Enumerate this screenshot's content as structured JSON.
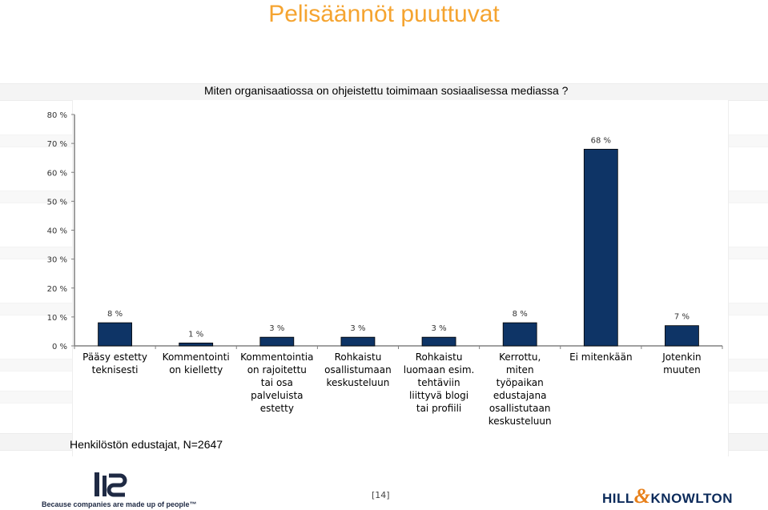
{
  "page": {
    "title": "Pelisäännöt puuttuvat",
    "question": "Miten organisaatiossa on ohjeistettu toimimaan sosiaalisessa mediassa ?",
    "footnote": "Henkilöstön edustajat, N=2647",
    "page_number": "[14]",
    "logo_left_tagline": "Because companies are made up of people™",
    "logo_right_text_a": "HILL",
    "logo_right_text_b": "&",
    "logo_right_text_c": "KNOWLTON",
    "colors": {
      "title": "#f5a430",
      "bar": "#0e3466",
      "axis": "#808080"
    }
  },
  "chart_data": {
    "type": "bar",
    "categories": [
      [
        "Pääsy estetty",
        "teknisesti"
      ],
      [
        "Kommentointi",
        "on kielletty"
      ],
      [
        "Kommentointia",
        "on rajoitettu",
        "tai osa",
        "palveluista",
        "estetty"
      ],
      [
        "Rohkaistu",
        "osallistumaan",
        "keskusteluun"
      ],
      [
        "Rohkaistu",
        "luomaan esim.",
        "tehtäviin",
        "liittyvä blogi",
        "tai profiili"
      ],
      [
        "Kerrottu,",
        "miten",
        "työpaikan",
        "edustajana",
        "osallistutaan",
        "keskusteluun"
      ],
      [
        "Ei mitenkään"
      ],
      [
        "Jotenkin",
        "muuten"
      ]
    ],
    "values": [
      8,
      1,
      3,
      3,
      3,
      8,
      68,
      7
    ],
    "data_labels": [
      "8 %",
      "1 %",
      "3 %",
      "3 %",
      "3 %",
      "8 %",
      "68 %",
      "7 %"
    ],
    "yticks": [
      "0 %",
      "10 %",
      "20 %",
      "30 %",
      "40 %",
      "50 %",
      "60 %",
      "70 %",
      "80 %"
    ],
    "ylim": [
      0,
      80
    ],
    "grid": false,
    "legend": "none"
  }
}
